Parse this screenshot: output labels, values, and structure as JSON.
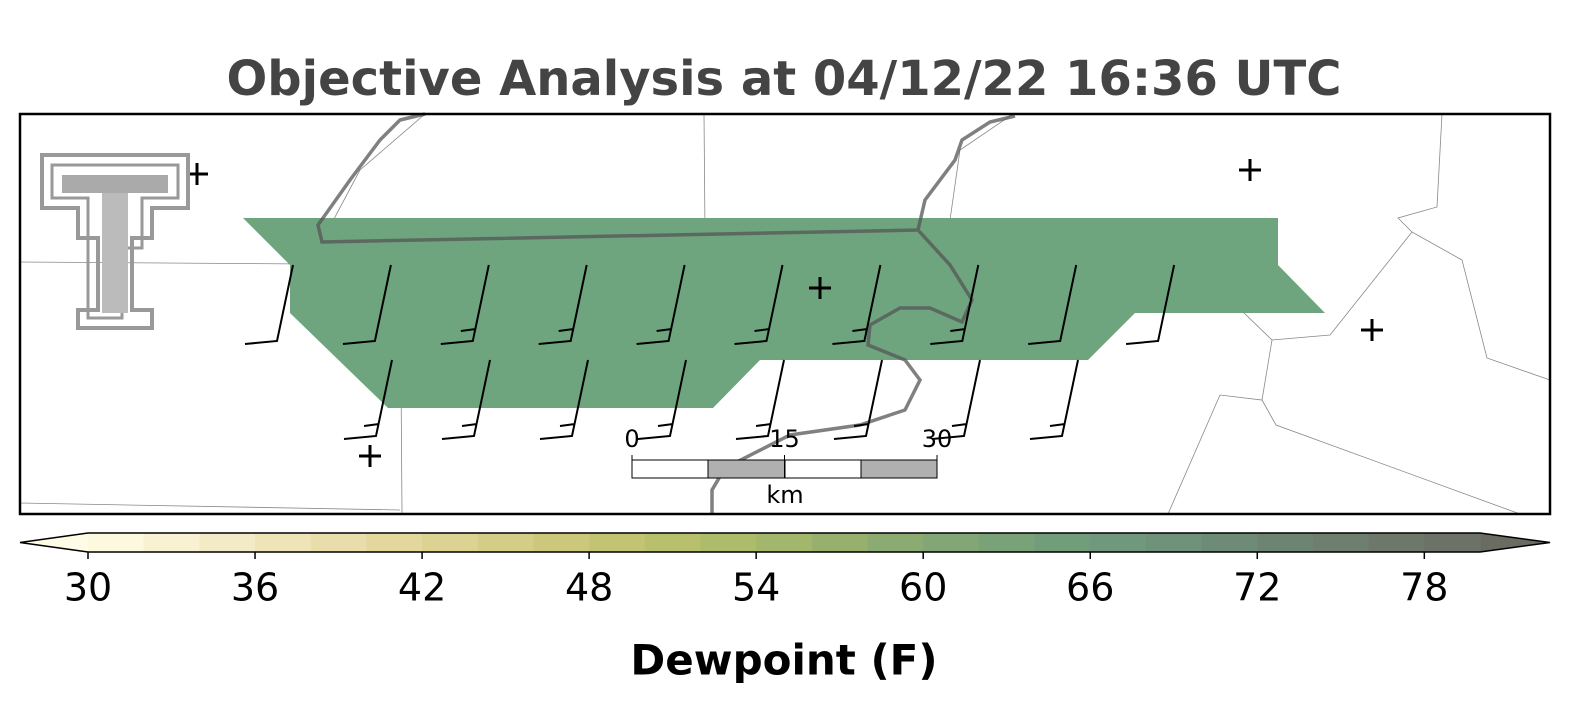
{
  "title": "Objective Analysis at 04/12/22 16:36 UTC",
  "colorbar": {
    "label": "Dewpoint (F)",
    "levels": [
      30,
      32,
      34,
      36,
      38,
      40,
      42,
      44,
      46,
      48,
      50,
      52,
      54,
      56,
      58,
      60,
      62,
      64,
      66,
      68,
      70,
      72,
      74,
      76,
      78,
      80
    ],
    "colors": [
      "#fdf9df",
      "#f8f2d2",
      "#f3ebc5",
      "#eee4b8",
      "#e9ddab",
      "#e3d79e",
      "#dcd291",
      "#d4cd85",
      "#cbc87b",
      "#c2c473",
      "#b8c06e",
      "#adbc6b",
      "#a2b76b",
      "#97b06e",
      "#8cab72",
      "#82a676",
      "#79a279",
      "#729d7b",
      "#6f987c",
      "#6e927a",
      "#6e8b77",
      "#6e8473",
      "#6e7e6f",
      "#6d786b",
      "#6c7267"
    ],
    "under_color": "#fefbe6",
    "over_color": "#6a6c62",
    "ticks": [
      30,
      36,
      42,
      48,
      54,
      60,
      66,
      72,
      78
    ]
  },
  "scale_bar": {
    "ticks": [
      0,
      15,
      30
    ],
    "unit": "km"
  }
}
